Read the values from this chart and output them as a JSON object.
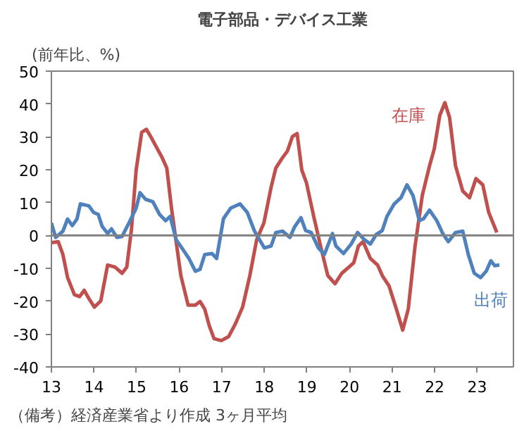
{
  "chart_data": {
    "type": "line",
    "title": "電子部品・デバイス工業",
    "ylabel": "(前年比、%)",
    "annotations": [
      "（備考）経済産業省より作成 3ヶ月平均"
    ],
    "xlim": [
      13,
      23.85
    ],
    "xticks": [
      13,
      14,
      15,
      16,
      17,
      18,
      19,
      20,
      21,
      22,
      23
    ],
    "ylim": [
      -40,
      50
    ],
    "yticks": [
      -40,
      -30,
      -20,
      -10,
      0,
      10,
      20,
      30,
      40,
      50
    ],
    "grid": false,
    "legend": false,
    "ref_lines": [
      {
        "axis": "y",
        "value": 0,
        "color": "#808080"
      }
    ],
    "series": [
      {
        "name": "在庫",
        "color": "#c0504d",
        "x": [
          13.0,
          13.16,
          13.27,
          13.38,
          13.54,
          13.66,
          13.77,
          13.88,
          14.01,
          14.16,
          14.32,
          14.49,
          14.66,
          14.77,
          14.88,
          14.99,
          15.12,
          15.23,
          15.34,
          15.49,
          15.6,
          15.71,
          15.82,
          15.93,
          16.04,
          16.21,
          16.38,
          16.49,
          16.6,
          16.71,
          16.82,
          16.99,
          17.16,
          17.32,
          17.49,
          17.66,
          17.82,
          17.99,
          18.16,
          18.27,
          18.43,
          18.54,
          18.66,
          18.77,
          18.88,
          18.99,
          19.16,
          19.32,
          19.49,
          19.66,
          19.82,
          19.99,
          20.1,
          20.21,
          20.32,
          20.49,
          20.66,
          20.77,
          20.93,
          21.1,
          21.25,
          21.38,
          21.54,
          21.71,
          21.88,
          21.99,
          22.12,
          22.24,
          22.35,
          22.49,
          22.66,
          22.82,
          22.97,
          23.13,
          23.27,
          23.46
        ],
        "values": [
          -2.2,
          -1.9,
          -5.8,
          -12.8,
          -18,
          -18.6,
          -16.7,
          -19.2,
          -21.8,
          -19.9,
          -9,
          -9.6,
          -11.5,
          -9.6,
          1.9,
          19.9,
          31.4,
          32.3,
          29.9,
          26.3,
          23.7,
          20.5,
          8.3,
          -2,
          -12.2,
          -21.2,
          -21.2,
          -20.1,
          -22.4,
          -27.6,
          -31.4,
          -32,
          -30.8,
          -26.9,
          -21.8,
          -12.2,
          -1.3,
          3.8,
          14.7,
          20.5,
          23.7,
          25.6,
          30.1,
          31,
          19.9,
          16,
          5.8,
          -3.2,
          -12.2,
          -14.7,
          -11.5,
          -9.6,
          -8.3,
          -3.2,
          -1.9,
          -7,
          -9,
          -12.2,
          -15.4,
          -22.4,
          -28.8,
          -22.4,
          -3.2,
          12.2,
          21.2,
          26.3,
          36.5,
          40.4,
          35.9,
          21.2,
          13.5,
          11.5,
          17.3,
          15.4,
          7,
          0.9
        ]
      },
      {
        "name": "出荷",
        "color": "#4f81bd",
        "x": [
          13.0,
          13.1,
          13.27,
          13.38,
          13.49,
          13.6,
          13.68,
          13.88,
          13.99,
          14.1,
          14.19,
          14.32,
          14.41,
          14.54,
          14.66,
          14.82,
          14.99,
          15.08,
          15.21,
          15.38,
          15.54,
          15.68,
          15.79,
          15.93,
          16.1,
          16.23,
          16.38,
          16.49,
          16.6,
          16.77,
          16.88,
          17.04,
          17.21,
          17.43,
          17.6,
          17.77,
          18.0,
          18.16,
          18.27,
          18.43,
          18.6,
          18.71,
          18.86,
          18.97,
          19.1,
          19.27,
          19.41,
          19.6,
          19.68,
          19.86,
          20.04,
          20.19,
          20.35,
          20.49,
          20.63,
          20.77,
          20.88,
          21.05,
          21.21,
          21.35,
          21.49,
          21.64,
          21.74,
          21.88,
          22.05,
          22.19,
          22.32,
          22.49,
          22.66,
          22.79,
          22.93,
          23.08,
          23.21,
          23.32,
          23.41,
          23.52
        ],
        "values": [
          3.8,
          -0.6,
          1.3,
          5,
          3,
          5,
          9.6,
          9,
          7,
          6.4,
          2.8,
          0.6,
          2,
          -0.6,
          -0.3,
          3.8,
          8.3,
          13,
          11,
          10.3,
          6.4,
          4.5,
          5.8,
          -1.3,
          -4.5,
          -7,
          -10.9,
          -10.3,
          -5.8,
          -5.5,
          -7,
          5.1,
          8.3,
          9.6,
          7,
          1.3,
          -3.8,
          -3.2,
          0.9,
          1.3,
          -0.6,
          2.6,
          5.4,
          1.5,
          0.9,
          -3.8,
          -5.8,
          0.6,
          -3.2,
          -5.5,
          -2.6,
          0.9,
          -1.3,
          -2.6,
          0.3,
          1.5,
          5.8,
          9.6,
          11.5,
          15.4,
          12.2,
          4.5,
          5.1,
          7.7,
          4.5,
          0.6,
          -1.9,
          0.9,
          1.3,
          -5.8,
          -11.5,
          -12.8,
          -10.9,
          -7.7,
          -9.2,
          -9
        ]
      }
    ]
  }
}
